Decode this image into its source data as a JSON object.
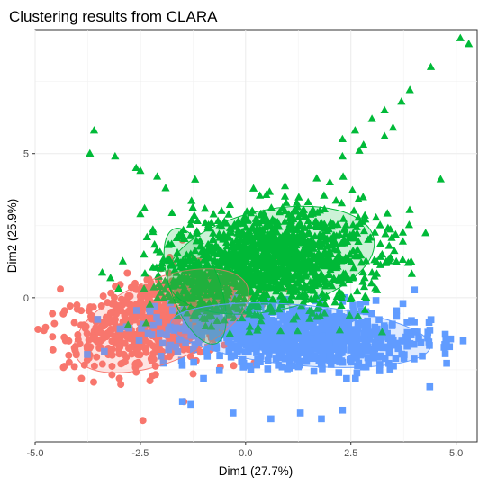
{
  "chart_data": {
    "type": "scatter",
    "title": "Clustering results from CLARA",
    "xlabel": "Dim1 (27.7%)",
    "ylabel": "Dim2 (25.9%)",
    "xlim": [
      -5.0,
      5.5
    ],
    "ylim": [
      -5.0,
      9.3
    ],
    "x_ticks": [
      -5.0,
      -2.5,
      0.0,
      2.5,
      5.0
    ],
    "x_tick_labels": [
      "-5.0",
      "-2.5",
      "0.0",
      "2.5",
      "5.0"
    ],
    "y_ticks": [
      0,
      5
    ],
    "y_tick_labels": [
      "0",
      "5"
    ],
    "grid": true,
    "legend": "none",
    "series": [
      {
        "color": "#F8766D",
        "marker": "circle",
        "center": [
          -2.0,
          -0.8
        ],
        "n_points": 700,
        "ellipse": {
          "center": [
            -2.0,
            -0.8
          ],
          "semi_axes": [
            2.2,
            1.45
          ],
          "angle_deg": 22
        },
        "outliers": [
          [
            -4.4,
            0.3
          ],
          [
            -4.2,
            -1.5
          ],
          [
            -3.9,
            -2.8
          ],
          [
            -3.4,
            -2.3
          ],
          [
            -3.0,
            -2.8
          ],
          [
            -1.5,
            2.0
          ],
          [
            -0.6,
            -2.4
          ],
          [
            -0.3,
            -1.1
          ],
          [
            -1.8,
            1.4
          ],
          [
            -4.0,
            -0.4
          ]
        ]
      },
      {
        "color": "#00BA38",
        "marker": "triangle",
        "center": [
          0.6,
          1.3
        ],
        "n_points": 1300,
        "ellipse": {
          "center": [
            0.6,
            1.3
          ],
          "semi_axes": [
            2.5,
            1.75
          ],
          "angle_deg": 12
        },
        "small_ellipse": {
          "center": [
            -1.2,
            0.4
          ],
          "semi_axes": [
            1.45,
            0.85
          ],
          "angle_deg": -70
        },
        "outliers": [
          [
            5.1,
            9.0
          ],
          [
            5.3,
            8.8
          ],
          [
            4.4,
            8.0
          ],
          [
            3.9,
            7.2
          ],
          [
            3.7,
            6.8
          ],
          [
            3.3,
            6.5
          ],
          [
            3.0,
            6.2
          ],
          [
            2.6,
            5.8
          ],
          [
            2.3,
            5.5
          ],
          [
            3.5,
            5.9
          ],
          [
            3.3,
            5.6
          ],
          [
            2.8,
            5.3
          ],
          [
            -3.6,
            5.8
          ],
          [
            -3.7,
            5.0
          ],
          [
            -3.1,
            4.9
          ],
          [
            -2.6,
            4.5
          ],
          [
            -2.5,
            4.4
          ],
          [
            -2.1,
            4.2
          ],
          [
            -1.9,
            3.8
          ],
          [
            -2.4,
            3.1
          ],
          [
            -2.5,
            2.9
          ],
          [
            2.3,
            4.9
          ],
          [
            2.7,
            5.1
          ],
          [
            2.0,
            4.0
          ],
          [
            -1.2,
            4.1
          ]
        ]
      },
      {
        "color": "#619CFF",
        "marker": "square",
        "center": [
          1.2,
          -1.9
        ],
        "n_points": 900,
        "ellipse": {
          "center": [
            1.3,
            -1.3
          ],
          "semi_axes": [
            3.1,
            1.05
          ],
          "angle_deg": -5
        },
        "outliers": [
          [
            -1.5,
            -3.6
          ],
          [
            -1.3,
            -3.7
          ],
          [
            -0.3,
            -4.0
          ],
          [
            0.6,
            -4.2
          ],
          [
            1.3,
            -4.0
          ],
          [
            2.3,
            -3.9
          ],
          [
            2.8,
            -2.4
          ],
          [
            2.9,
            -1.2
          ],
          [
            2.9,
            -1.7
          ],
          [
            -1.0,
            -2.8
          ],
          [
            1.8,
            -4.2
          ]
        ]
      }
    ]
  }
}
